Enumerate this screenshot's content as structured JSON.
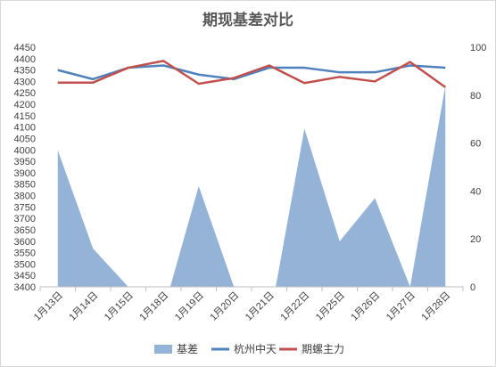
{
  "chart_data": {
    "type": "line",
    "title": "期现基差对比",
    "categories": [
      "1月13日",
      "1月14日",
      "1月15日",
      "1月18日",
      "1月19日",
      "1月20日",
      "1月21日",
      "1月22日",
      "1月25日",
      "1月26日",
      "1月27日",
      "1月28日"
    ],
    "y_left": {
      "min": 3400,
      "max": 4450,
      "step": 50
    },
    "y_right": {
      "min": 0,
      "max": 100,
      "step": 20
    },
    "grid": false,
    "legend_position": "bottom",
    "series": [
      {
        "name": "基差",
        "kind": "area",
        "axis": "right",
        "color": "#95b3d7",
        "values": [
          57,
          16,
          0,
          -10,
          42,
          0,
          -15,
          66,
          19,
          37,
          0,
          84
        ]
      },
      {
        "name": "杭州中天",
        "kind": "line",
        "axis": "left",
        "color": "#4f81bd",
        "values": [
          4350,
          4310,
          4360,
          4370,
          4330,
          4310,
          4360,
          4360,
          4340,
          4340,
          4370,
          4360
        ]
      },
      {
        "name": "期螺主力",
        "kind": "line",
        "axis": "left",
        "color": "#c0504d",
        "values": [
          4295,
          4295,
          4360,
          4390,
          4290,
          4315,
          4370,
          4293,
          4320,
          4300,
          4385,
          4275
        ]
      }
    ]
  }
}
